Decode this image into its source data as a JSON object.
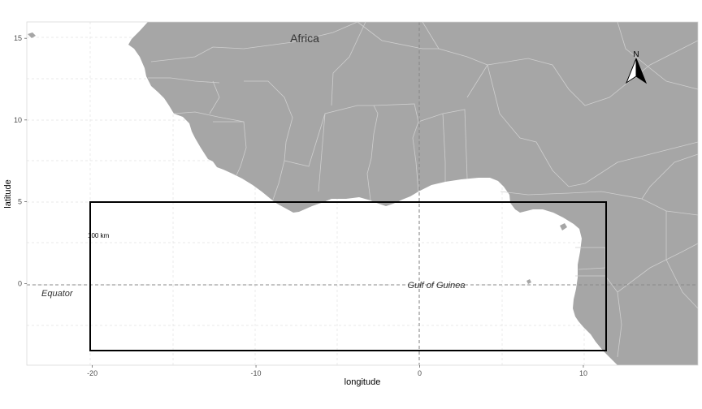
{
  "map": {
    "labels": {
      "continent": "Africa",
      "equator": "Equator",
      "gulf": "Gulf of Guinea",
      "scale_bar": "100 km",
      "north": "N"
    },
    "axes": {
      "xlabel": "longitude",
      "ylabel": "latitude",
      "xlim": [
        -24,
        17
      ],
      "ylim": [
        -5,
        16
      ],
      "xticks": [
        {
          "value": -20,
          "label": "-20"
        },
        {
          "value": -10,
          "label": "-10"
        },
        {
          "value": 0,
          "label": "0"
        },
        {
          "value": 10,
          "label": "10"
        }
      ],
      "yticks": [
        {
          "value": 0,
          "label": "0"
        },
        {
          "value": 5,
          "label": "5"
        },
        {
          "value": 10,
          "label": "10"
        },
        {
          "value": 15,
          "label": "15"
        }
      ]
    },
    "study_area": {
      "lon_min": -20,
      "lon_max": 11.4,
      "lat_min": -4,
      "lat_max": 5
    },
    "reference_lines": {
      "equator_lat": 0,
      "prime_meridian_lon": 0
    },
    "colors": {
      "land": "#a6a6a6",
      "borders": "#cfcfcf",
      "ocean": "#ffffff",
      "grid": "#e3e3e3",
      "reference_lines": "#8a8a8a",
      "box": "#000000"
    },
    "grid": true
  }
}
